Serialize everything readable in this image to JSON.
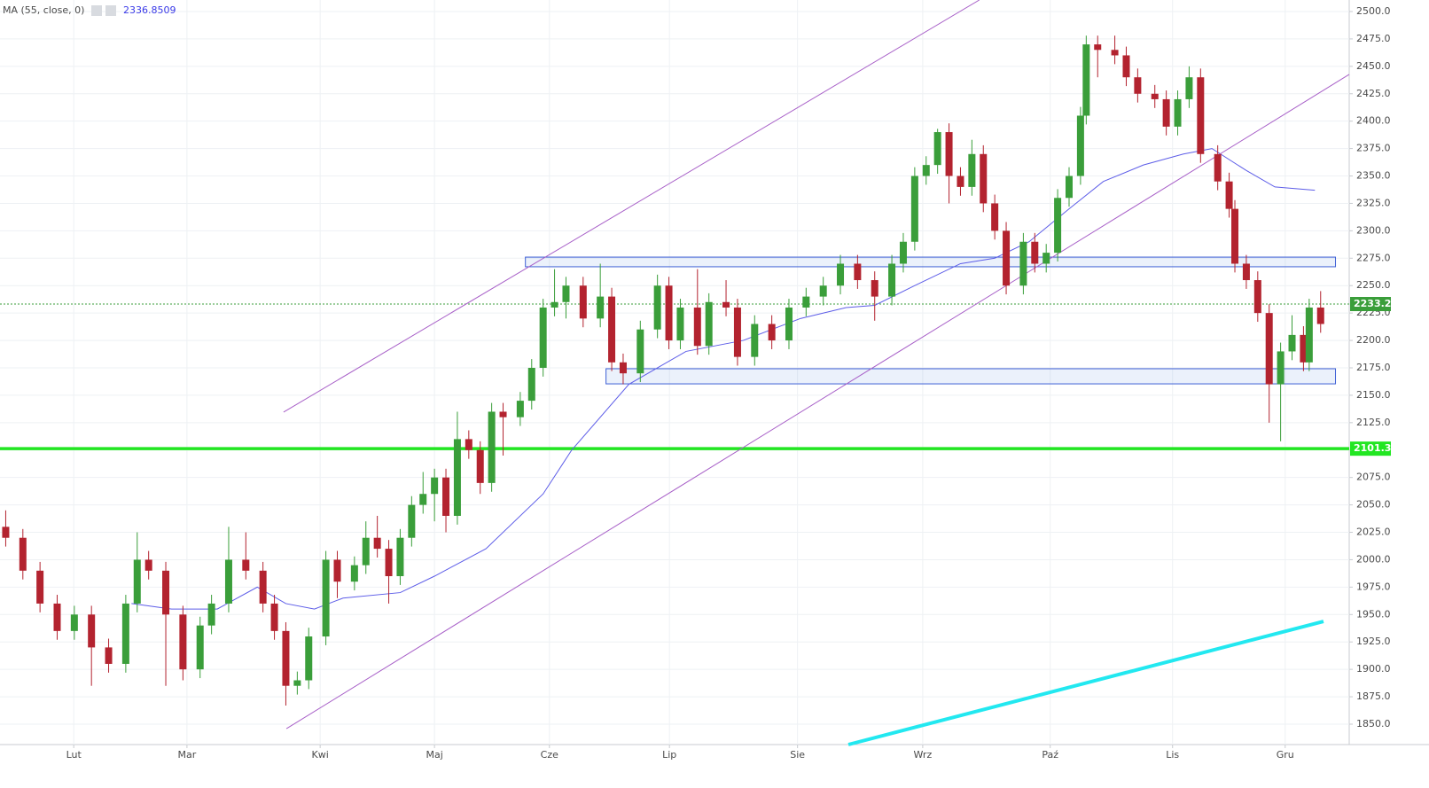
{
  "chart_data": {
    "type": "candlestick",
    "indicator": {
      "label": "MA (55, close, 0)",
      "last_value": 2336.8509,
      "color": "#5d5de8",
      "x": [
        23,
        30,
        38,
        45,
        50,
        55,
        60,
        70,
        76,
        85,
        95,
        100,
        110,
        120,
        130,
        140,
        148,
        153,
        160,
        168,
        174,
        180,
        187,
        193,
        200,
        207,
        212,
        218,
        223,
        230
      ],
      "values": [
        1960,
        1955,
        1955,
        1975,
        1960,
        1955,
        1965,
        1970,
        1985,
        2010,
        2060,
        2100,
        2160,
        2190,
        2200,
        2220,
        2230,
        2232,
        2250,
        2270,
        2275,
        2290,
        2320,
        2345,
        2360,
        2370,
        2375,
        2355,
        2340,
        2337
      ]
    },
    "up_color": "#3a9e3a",
    "down_color": "#b3232f",
    "candles": [
      [
        1,
        2030,
        2045,
        2012,
        2020
      ],
      [
        4,
        2020,
        2028,
        1982,
        1990
      ],
      [
        7,
        1990,
        1998,
        1952,
        1960
      ],
      [
        10,
        1960,
        1968,
        1927,
        1935
      ],
      [
        13,
        1935,
        1958,
        1927,
        1950
      ],
      [
        16,
        1950,
        1958,
        1885,
        1920
      ],
      [
        19,
        1920,
        1928,
        1897,
        1905
      ],
      [
        22,
        1905,
        1968,
        1897,
        1960
      ],
      [
        24,
        1960,
        2025,
        1952,
        2000
      ],
      [
        26,
        2000,
        2008,
        1982,
        1990
      ],
      [
        29,
        1990,
        1998,
        1885,
        1950
      ],
      [
        32,
        1950,
        1958,
        1890,
        1900
      ],
      [
        35,
        1900,
        1948,
        1892,
        1940
      ],
      [
        37,
        1940,
        1968,
        1932,
        1960
      ],
      [
        40,
        1960,
        2030,
        1952,
        2000
      ],
      [
        43,
        2000,
        2025,
        1982,
        1990
      ],
      [
        46,
        1990,
        1998,
        1952,
        1960
      ],
      [
        48,
        1960,
        1968,
        1927,
        1935
      ],
      [
        50,
        1935,
        1943,
        1867,
        1885
      ],
      [
        52,
        1885,
        1898,
        1877,
        1890
      ],
      [
        54,
        1890,
        1938,
        1882,
        1930
      ],
      [
        57,
        1930,
        2008,
        1922,
        2000
      ],
      [
        59,
        2000,
        2008,
        1965,
        1980
      ],
      [
        62,
        1980,
        2003,
        1972,
        1995
      ],
      [
        64,
        1995,
        2035,
        1987,
        2020
      ],
      [
        66,
        2020,
        2040,
        2002,
        2010
      ],
      [
        68,
        2010,
        2018,
        1960,
        1985
      ],
      [
        70,
        1985,
        2028,
        1977,
        2020
      ],
      [
        72,
        2020,
        2058,
        2012,
        2050
      ],
      [
        74,
        2050,
        2080,
        2042,
        2060
      ],
      [
        76,
        2060,
        2083,
        2035,
        2075
      ],
      [
        78,
        2075,
        2083,
        2025,
        2040
      ],
      [
        80,
        2040,
        2135,
        2032,
        2110
      ],
      [
        82,
        2110,
        2118,
        2092,
        2100
      ],
      [
        84,
        2100,
        2108,
        2060,
        2070
      ],
      [
        86,
        2070,
        2143,
        2062,
        2135
      ],
      [
        88,
        2135,
        2143,
        2095,
        2130
      ],
      [
        91,
        2130,
        2153,
        2122,
        2145
      ],
      [
        93,
        2145,
        2183,
        2137,
        2175
      ],
      [
        95,
        2175,
        2238,
        2167,
        2230
      ],
      [
        97,
        2230,
        2265,
        2222,
        2235
      ],
      [
        99,
        2235,
        2258,
        2220,
        2250
      ],
      [
        102,
        2250,
        2258,
        2212,
        2220
      ],
      [
        105,
        2220,
        2270,
        2212,
        2240
      ],
      [
        107,
        2240,
        2248,
        2172,
        2180
      ],
      [
        109,
        2180,
        2188,
        2160,
        2170
      ],
      [
        112,
        2170,
        2218,
        2162,
        2210
      ],
      [
        115,
        2210,
        2260,
        2202,
        2250
      ],
      [
        117,
        2250,
        2258,
        2192,
        2200
      ],
      [
        119,
        2200,
        2238,
        2192,
        2230
      ],
      [
        122,
        2230,
        2265,
        2187,
        2195
      ],
      [
        124,
        2195,
        2243,
        2187,
        2235
      ],
      [
        127,
        2235,
        2255,
        2222,
        2230
      ],
      [
        129,
        2230,
        2238,
        2177,
        2185
      ],
      [
        132,
        2185,
        2223,
        2177,
        2215
      ],
      [
        135,
        2215,
        2223,
        2192,
        2200
      ],
      [
        138,
        2200,
        2238,
        2192,
        2230
      ],
      [
        141,
        2230,
        2248,
        2222,
        2240
      ],
      [
        144,
        2240,
        2258,
        2232,
        2250
      ],
      [
        147,
        2250,
        2278,
        2242,
        2270
      ],
      [
        150,
        2270,
        2278,
        2247,
        2255
      ],
      [
        153,
        2255,
        2263,
        2218,
        2240
      ],
      [
        156,
        2240,
        2278,
        2232,
        2270
      ],
      [
        158,
        2270,
        2298,
        2262,
        2290
      ],
      [
        160,
        2290,
        2358,
        2282,
        2350
      ],
      [
        162,
        2350,
        2368,
        2342,
        2360
      ],
      [
        164,
        2360,
        2393,
        2352,
        2390
      ],
      [
        166,
        2390,
        2398,
        2325,
        2350
      ],
      [
        168,
        2350,
        2358,
        2332,
        2340
      ],
      [
        170,
        2340,
        2383,
        2332,
        2370
      ],
      [
        172,
        2370,
        2378,
        2317,
        2325
      ],
      [
        174,
        2325,
        2333,
        2292,
        2300
      ],
      [
        176,
        2300,
        2308,
        2242,
        2250
      ],
      [
        179,
        2250,
        2298,
        2242,
        2290
      ],
      [
        181,
        2290,
        2298,
        2262,
        2270
      ],
      [
        183,
        2270,
        2288,
        2262,
        2280
      ],
      [
        185,
        2280,
        2338,
        2272,
        2330
      ],
      [
        187,
        2330,
        2358,
        2322,
        2350
      ],
      [
        189,
        2350,
        2413,
        2342,
        2405
      ],
      [
        190,
        2405,
        2478,
        2397,
        2470
      ],
      [
        192,
        2470,
        2478,
        2440,
        2465
      ],
      [
        195,
        2465,
        2478,
        2452,
        2460
      ],
      [
        197,
        2460,
        2468,
        2432,
        2440
      ],
      [
        199,
        2440,
        2448,
        2417,
        2425
      ],
      [
        202,
        2425,
        2433,
        2412,
        2420
      ],
      [
        204,
        2420,
        2428,
        2387,
        2395
      ],
      [
        206,
        2395,
        2428,
        2387,
        2420
      ],
      [
        208,
        2420,
        2450,
        2412,
        2440
      ],
      [
        210,
        2440,
        2448,
        2362,
        2370
      ],
      [
        213,
        2370,
        2378,
        2337,
        2345
      ],
      [
        215,
        2345,
        2353,
        2312,
        2320
      ],
      [
        216,
        2320,
        2328,
        2262,
        2270
      ],
      [
        218,
        2270,
        2278,
        2247,
        2255
      ],
      [
        220,
        2255,
        2263,
        2217,
        2225
      ],
      [
        222,
        2225,
        2233,
        2125,
        2160
      ],
      [
        224,
        2160,
        2198,
        2108,
        2190
      ],
      [
        226,
        2190,
        2223,
        2182,
        2205
      ],
      [
        228,
        2205,
        2213,
        2172,
        2180
      ],
      [
        229,
        2180,
        2238,
        2172,
        2230
      ],
      [
        231,
        2230,
        2245,
        2207,
        2215
      ]
    ],
    "xlim": [
      0,
      236
    ],
    "ylim": [
      1831.4,
      2510.5
    ],
    "xticks": [
      {
        "value": 12.9,
        "label": "Lut"
      },
      {
        "value": 32.7,
        "label": "Mar"
      },
      {
        "value": 56,
        "label": "Kwi"
      },
      {
        "value": 76,
        "label": "Maj"
      },
      {
        "value": 96.1,
        "label": "Cze"
      },
      {
        "value": 117.1,
        "label": "Lip"
      },
      {
        "value": 139.5,
        "label": "Sie"
      },
      {
        "value": 161.4,
        "label": "Wrz"
      },
      {
        "value": 183.7,
        "label": "Paź"
      },
      {
        "value": 205.1,
        "label": "Lis"
      },
      {
        "value": 224.8,
        "label": "Gru"
      }
    ],
    "yticks": [
      {
        "value": 1850,
        "label": "1850.0"
      },
      {
        "value": 1875,
        "label": "1875.0"
      },
      {
        "value": 1900,
        "label": "1900.0"
      },
      {
        "value": 1925,
        "label": "1925.0"
      },
      {
        "value": 1950,
        "label": "1950.0"
      },
      {
        "value": 1975,
        "label": "1975.0"
      },
      {
        "value": 2000,
        "label": "2000.0"
      },
      {
        "value": 2025,
        "label": "2025.0"
      },
      {
        "value": 2050,
        "label": "2050.0"
      },
      {
        "value": 2075,
        "label": "2075.0"
      },
      {
        "value": 2100,
        "label": "2100.0"
      },
      {
        "value": 2125,
        "label": "2125.0"
      },
      {
        "value": 2150,
        "label": "2150.0"
      },
      {
        "value": 2175,
        "label": "2175.0"
      },
      {
        "value": 2200,
        "label": "2200.0"
      },
      {
        "value": 2225,
        "label": "2225.0"
      },
      {
        "value": 2250,
        "label": "2250.0"
      },
      {
        "value": 2275,
        "label": "2275.0"
      },
      {
        "value": 2300,
        "label": "2300.0"
      },
      {
        "value": 2325,
        "label": "2325.0"
      },
      {
        "value": 2350,
        "label": "2350.0"
      },
      {
        "value": 2375,
        "label": "2375.0"
      },
      {
        "value": 2400,
        "label": "2400.0"
      },
      {
        "value": 2425,
        "label": "2425.0"
      },
      {
        "value": 2450,
        "label": "2450.0"
      },
      {
        "value": 2475,
        "label": "2475.0"
      },
      {
        "value": 2500,
        "label": "2500.0"
      }
    ],
    "grid": true,
    "price_lines": [
      {
        "value": 2233.2,
        "color": "#3a9e3a",
        "style": "dotted"
      },
      {
        "value": 2101.3,
        "color": "#22e622",
        "style": "solid"
      }
    ],
    "trend_lines": [
      {
        "from": [
          49.6,
          2134.6
        ],
        "to": [
          171.3,
          2510.5
        ],
        "color": "#a860c8"
      },
      {
        "from": [
          50.1,
          1845.9
        ],
        "to": [
          236,
          2442.6
        ],
        "color": "#a860c8"
      },
      {
        "from": [
          148.4,
          1831.4
        ],
        "to": [
          231.5,
          1943.7
        ],
        "color": "#22e8f0"
      }
    ],
    "zones": [
      {
        "x": [
          91.9,
          233.6
        ],
        "y": [
          2267.2,
          2276.0
        ]
      },
      {
        "x": [
          106,
          233.6
        ],
        "y": [
          2160.4,
          2174.2
        ]
      }
    ]
  }
}
